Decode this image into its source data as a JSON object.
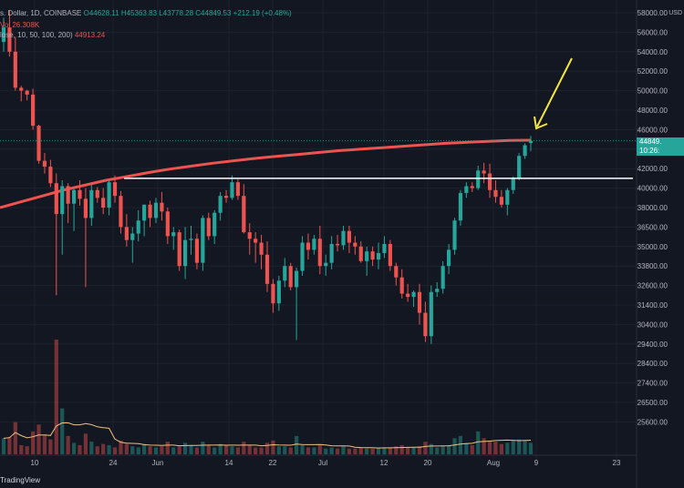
{
  "header": {
    "ticker_text": "s. Dollar, 1D, COINBASE",
    "open": "O44628.11",
    "high": "H45363.83",
    "low": "L43778.28",
    "close": "C44849.53",
    "change": "+212.19 (+0.48%)",
    "volume_text": "Vol 26.308K",
    "ma_text": "lose, 10, 50, 100, 200)",
    "ma_value": "44913.24"
  },
  "price_tag": {
    "price": "44849.",
    "countdown": "10:26:"
  },
  "currency": "USD",
  "brand": "TradingView",
  "colors": {
    "background": "#131722",
    "up": "#26a69a",
    "down": "#ef5350",
    "ma200": "#ef5350",
    "volume_ma": "#f0c080",
    "resistance": "#ffffff",
    "arrow": "#f5e642",
    "grid": "#1e222d"
  },
  "chart_data": {
    "type": "candlestick",
    "title": "",
    "price_axis_ticks": [
      58000,
      56000,
      54000,
      52000,
      50000,
      48000,
      46000,
      44000,
      42000,
      40000,
      38000,
      36500,
      35000,
      33800,
      32600,
      31400,
      30400,
      29400,
      28400,
      27400,
      26500,
      25600
    ],
    "time_axis_labels": [
      "10",
      "24",
      "Jun",
      "14",
      "22",
      "Jul",
      "12",
      "20",
      "Aug",
      "9",
      "23"
    ],
    "ohlc": [
      [
        55000,
        57500,
        54000,
        56500
      ],
      [
        56500,
        58200,
        53500,
        54000
      ],
      [
        54000,
        55500,
        50000,
        50300
      ],
      [
        50300,
        50500,
        48900,
        50000
      ],
      [
        50000,
        50100,
        49000,
        49600
      ],
      [
        49600,
        50200,
        46000,
        46400
      ],
      [
        46400,
        46500,
        42500,
        42800
      ],
      [
        42800,
        43600,
        41500,
        42200
      ],
      [
        42200,
        42900,
        40100,
        40500
      ],
      [
        40500,
        41500,
        32000,
        37500
      ],
      [
        37500,
        40800,
        34500,
        40200
      ],
      [
        40200,
        40500,
        36800,
        38400
      ],
      [
        38400,
        40000,
        36200,
        39800
      ],
      [
        39800,
        40800,
        38200,
        38900
      ],
      [
        38900,
        40000,
        32500,
        37200
      ],
      [
        37200,
        40500,
        36600,
        39800
      ],
      [
        39800,
        40100,
        38500,
        39000
      ],
      [
        39000,
        40000,
        37500,
        38000
      ],
      [
        38000,
        40900,
        37400,
        40600
      ],
      [
        40600,
        41300,
        38500,
        39200
      ],
      [
        39200,
        39700,
        36000,
        36500
      ],
      [
        36500,
        37500,
        35000,
        35500
      ],
      [
        35500,
        36500,
        34000,
        36000
      ],
      [
        36000,
        37800,
        35400,
        37000
      ],
      [
        37000,
        38300,
        35800,
        38300
      ],
      [
        38300,
        38700,
        36500,
        37200
      ],
      [
        37200,
        39000,
        36800,
        38500
      ],
      [
        38500,
        39600,
        37000,
        37700
      ],
      [
        37700,
        38000,
        35200,
        35800
      ],
      [
        35800,
        36500,
        34800,
        36100
      ],
      [
        36100,
        36300,
        33500,
        33800
      ],
      [
        33800,
        36500,
        33000,
        35500
      ],
      [
        35500,
        36600,
        34500,
        35600
      ],
      [
        35600,
        36000,
        33600,
        34000
      ],
      [
        34000,
        37400,
        33500,
        37200
      ],
      [
        37200,
        37600,
        35500,
        35800
      ],
      [
        35800,
        37800,
        35200,
        37600
      ],
      [
        37600,
        39600,
        37000,
        39200
      ],
      [
        39200,
        39800,
        38500,
        39000
      ],
      [
        39000,
        41300,
        38800,
        40600
      ],
      [
        40600,
        40900,
        38800,
        39200
      ],
      [
        39200,
        40400,
        36000,
        36100
      ],
      [
        36100,
        36800,
        34500,
        35600
      ],
      [
        35600,
        36100,
        34000,
        35300
      ],
      [
        35300,
        35900,
        33600,
        34500
      ],
      [
        34500,
        35400,
        32200,
        32700
      ],
      [
        32700,
        33000,
        31000,
        31500
      ],
      [
        31500,
        33200,
        31100,
        32900
      ],
      [
        32900,
        34300,
        32500,
        33800
      ],
      [
        33800,
        34000,
        32300,
        32500
      ],
      [
        32500,
        33700,
        29600,
        33500
      ],
      [
        33500,
        35800,
        33200,
        35300
      ],
      [
        35300,
        36000,
        34200,
        34800
      ],
      [
        34800,
        35900,
        34500,
        35600
      ],
      [
        35600,
        36600,
        33300,
        33800
      ],
      [
        33800,
        34500,
        33200,
        34000
      ],
      [
        34000,
        35800,
        33600,
        35200
      ],
      [
        35200,
        35900,
        34700,
        35100
      ],
      [
        35100,
        36600,
        34800,
        36200
      ],
      [
        36200,
        36600,
        34600,
        35300
      ],
      [
        35300,
        35800,
        34500,
        35000
      ],
      [
        35000,
        35400,
        34000,
        34100
      ],
      [
        34100,
        35000,
        33200,
        34700
      ],
      [
        34700,
        35000,
        33800,
        34200
      ],
      [
        34200,
        35300,
        33600,
        34600
      ],
      [
        34600,
        35800,
        34300,
        35200
      ],
      [
        35200,
        35500,
        33500,
        33800
      ],
      [
        33800,
        34000,
        32600,
        33100
      ],
      [
        33100,
        33600,
        31800,
        32100
      ],
      [
        32100,
        32700,
        31600,
        31900
      ],
      [
        31900,
        32300,
        31300,
        32200
      ],
      [
        32200,
        32700,
        30400,
        31000
      ],
      [
        31000,
        31600,
        29500,
        29800
      ],
      [
        29800,
        32600,
        29400,
        32200
      ],
      [
        32200,
        32800,
        31900,
        32400
      ],
      [
        32400,
        34100,
        32100,
        33800
      ],
      [
        33800,
        35200,
        33300,
        34800
      ],
      [
        34800,
        37200,
        34500,
        37000
      ],
      [
        37000,
        39800,
        36600,
        39500
      ],
      [
        39500,
        40600,
        39000,
        40200
      ],
      [
        40200,
        40600,
        39600,
        40000
      ],
      [
        40000,
        42300,
        39800,
        41800
      ],
      [
        41800,
        42600,
        40500,
        41500
      ],
      [
        41500,
        42500,
        39000,
        39800
      ],
      [
        39800,
        40800,
        38500,
        39100
      ],
      [
        39100,
        39800,
        38000,
        38300
      ],
      [
        38300,
        40000,
        37400,
        39800
      ],
      [
        39800,
        41200,
        39400,
        41000
      ],
      [
        41000,
        43600,
        40800,
        43300
      ],
      [
        43300,
        44600,
        43000,
        44400
      ],
      [
        44628,
        45364,
        43778,
        44850
      ]
    ],
    "volume": [
      14,
      15,
      28,
      8,
      7,
      20,
      26,
      17,
      13,
      100,
      40,
      16,
      10,
      8,
      18,
      11,
      7,
      9,
      8,
      6,
      12,
      9,
      7,
      6,
      9,
      7,
      6,
      7,
      11,
      6,
      7,
      10,
      8,
      6,
      11,
      8,
      6,
      9,
      8,
      7,
      6,
      11,
      8,
      6,
      6,
      10,
      12,
      7,
      7,
      6,
      16,
      8,
      6,
      6,
      8,
      5,
      6,
      5,
      7,
      5,
      5,
      6,
      5,
      5,
      6,
      6,
      6,
      7,
      8,
      6,
      6,
      7,
      11,
      9,
      6,
      7,
      8,
      14,
      16,
      10,
      8,
      20,
      14,
      12,
      11,
      9,
      10,
      12,
      13,
      12,
      10
    ],
    "ma200": [
      38000,
      38600,
      39200,
      39800,
      40300,
      40800,
      41200,
      41600,
      41950,
      42250,
      42550,
      42800,
      43050,
      43250,
      43450,
      43650,
      43850,
      44000,
      44150,
      44300,
      44450,
      44600,
      44700,
      44800,
      44900,
      44913
    ],
    "resistance_level": 41000
  }
}
